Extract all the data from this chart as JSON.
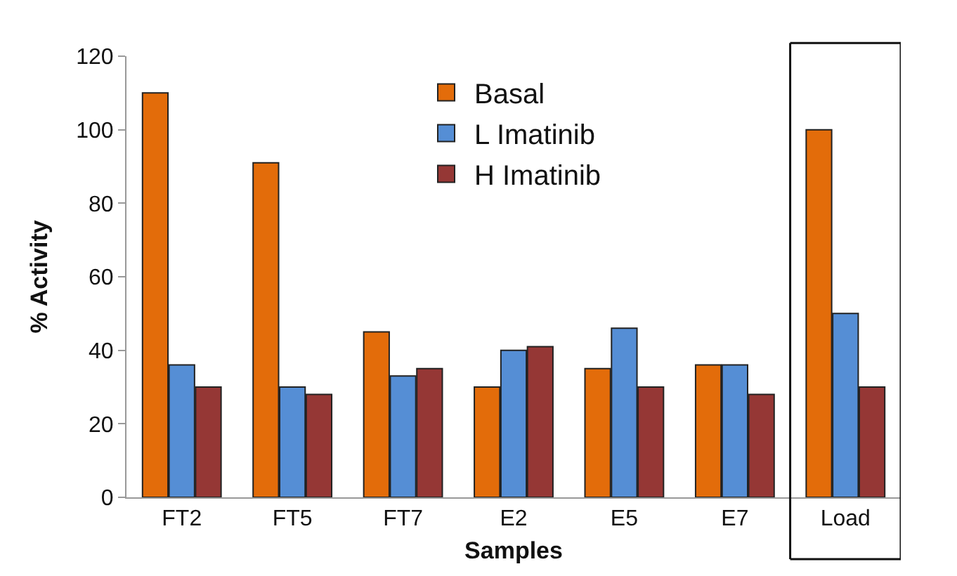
{
  "chart_data": {
    "type": "bar",
    "xlabel": "Samples",
    "ylabel": "% Activity",
    "categories": [
      "FT2",
      "FT5",
      "FT7",
      "E2",
      "E5",
      "E7",
      "Load"
    ],
    "series": [
      {
        "name": "Basal",
        "color": "#e36c0a",
        "values": [
          110,
          91,
          45,
          30,
          35,
          36,
          100
        ]
      },
      {
        "name": "L Imatinib",
        "color": "#558ed5",
        "values": [
          36,
          30,
          33,
          40,
          46,
          36,
          50
        ]
      },
      {
        "name": "H Imatinib",
        "color": "#953735",
        "values": [
          30,
          28,
          35,
          41,
          30,
          28,
          30
        ]
      }
    ],
    "ylim": [
      0,
      120
    ],
    "yticks": [
      0,
      20,
      40,
      60,
      80,
      100,
      120
    ],
    "grid": false,
    "legend": "top"
  }
}
